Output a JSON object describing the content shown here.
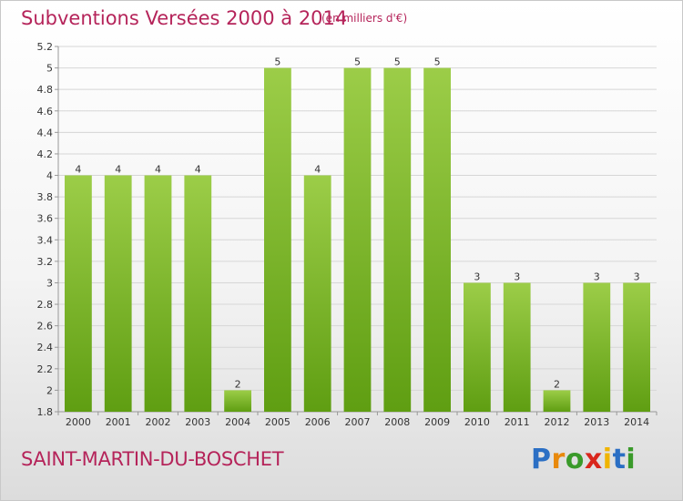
{
  "header": {
    "title": "Subventions Versées 2000 à 2014",
    "unit": "(en milliers d'€)"
  },
  "commune": "SAINT-MARTIN-DU-BOSCHET",
  "logo": {
    "text": "Proxiti",
    "letters": [
      "P",
      "r",
      "o",
      "x",
      "i",
      "t",
      "i"
    ],
    "colors": [
      "#2b6fc4",
      "#e8890c",
      "#3a9a2a",
      "#d9261c",
      "#f0b400",
      "#2b6fc4",
      "#3a9a2a"
    ]
  },
  "colors": {
    "bar_light": "#9ccd48",
    "bar_dark": "#5f9e12",
    "title": "#b5245a"
  },
  "chart_data": {
    "type": "bar",
    "categories": [
      "2000",
      "2001",
      "2002",
      "2003",
      "2004",
      "2005",
      "2006",
      "2007",
      "2008",
      "2009",
      "2010",
      "2011",
      "2012",
      "2013",
      "2014"
    ],
    "values": [
      4,
      4,
      4,
      4,
      2,
      5,
      4,
      5,
      5,
      5,
      3,
      3,
      2,
      3,
      3
    ],
    "value_labels": [
      "4",
      "4",
      "4",
      "4",
      "2",
      "5",
      "4",
      "5",
      "5",
      "5",
      "3",
      "3",
      "2",
      "3",
      "3"
    ],
    "bar_heights": [
      4.0,
      4.0,
      4.0,
      4.0,
      2.0,
      5.0,
      4.0,
      5.0,
      5.0,
      5.0,
      3.0,
      3.0,
      2.0,
      3.0,
      3.0
    ],
    "y_ticks": [
      1.8,
      2,
      2.2,
      2.4,
      2.6,
      2.8,
      3,
      3.2,
      3.4,
      3.6,
      3.8,
      4,
      4.2,
      4.4,
      4.6,
      4.8,
      5,
      5.2
    ],
    "y_tick_labels": [
      "1.8",
      "2",
      "2.2",
      "2.4",
      "2.6",
      "2.8",
      "3",
      "3.2",
      "3.4",
      "3.6",
      "3.8",
      "4",
      "4.2",
      "4.4",
      "4.6",
      "4.8",
      "5",
      "5.2"
    ],
    "ylim": [
      1.8,
      5.2
    ],
    "grid": true
  }
}
